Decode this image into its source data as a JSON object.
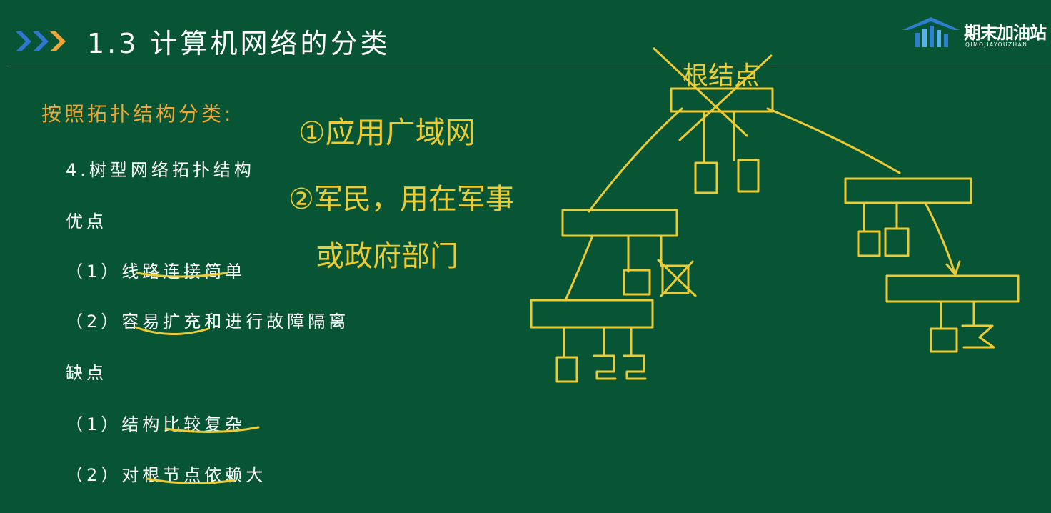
{
  "header": {
    "title": "1.3 计算机网络的分类",
    "logo": {
      "name": "期末加油站",
      "sub": "QIMOJIAYOUZHAN"
    }
  },
  "content": {
    "heading": "按照拓扑结构分类:",
    "topology": "4.树型网络拓扑结构",
    "pros_label": "优点",
    "pros": [
      "（1）线路连接简单",
      "（2）容易扩充和进行故障隔离"
    ],
    "cons_label": "缺点",
    "cons": [
      "（1）结构比较复杂",
      "（2）对根节点依赖大"
    ]
  },
  "annotations": {
    "note1": "①应用广域网",
    "note2a": "②军民，用在军事",
    "note2b": "或政府部门",
    "root_label": "根结点"
  },
  "colors": {
    "background": "#075534",
    "accent": "#f0a637",
    "ink": "#eccb35"
  }
}
